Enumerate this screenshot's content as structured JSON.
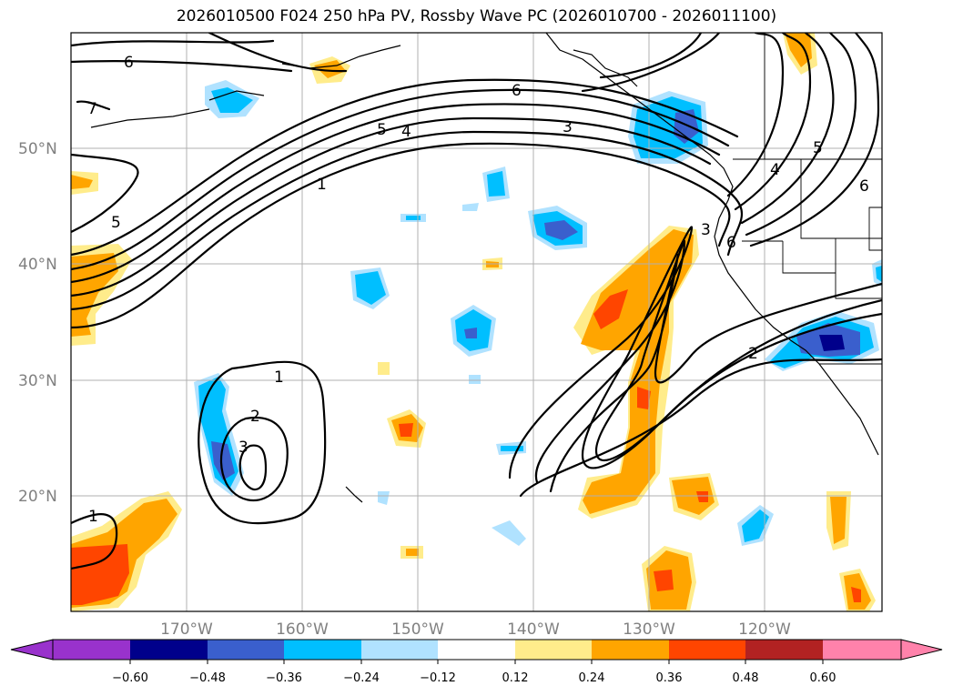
{
  "title": "2026010500 F024 250 hPa PV, Rossby Wave PC (2026010700 - 2026011100)",
  "lat_labels": [
    "50°N",
    "40°N",
    "30°N",
    "20°N"
  ],
  "lon_labels": [
    "170°W",
    "160°W",
    "150°W",
    "140°W",
    "130°W",
    "120°W"
  ],
  "colorbar": {
    "ticks": [
      "−0.60",
      "−0.48",
      "−0.36",
      "−0.24",
      "−0.12",
      "0.12",
      "0.24",
      "0.36",
      "0.48",
      "0.60"
    ],
    "colors": [
      "#9932cc",
      "#00008b",
      "#3a5fcd",
      "#00bfff",
      "#b0e2ff",
      "#ffffff",
      "#ffec8b",
      "#ffa500",
      "#ff4500",
      "#b22222",
      "#ff82ab"
    ]
  },
  "contour_labels": [
    "6",
    "6",
    "5",
    "4",
    "3",
    "1",
    "5",
    "7",
    "1",
    "2",
    "3",
    "1",
    "3",
    "6",
    "4",
    "5",
    "6",
    "2"
  ]
}
